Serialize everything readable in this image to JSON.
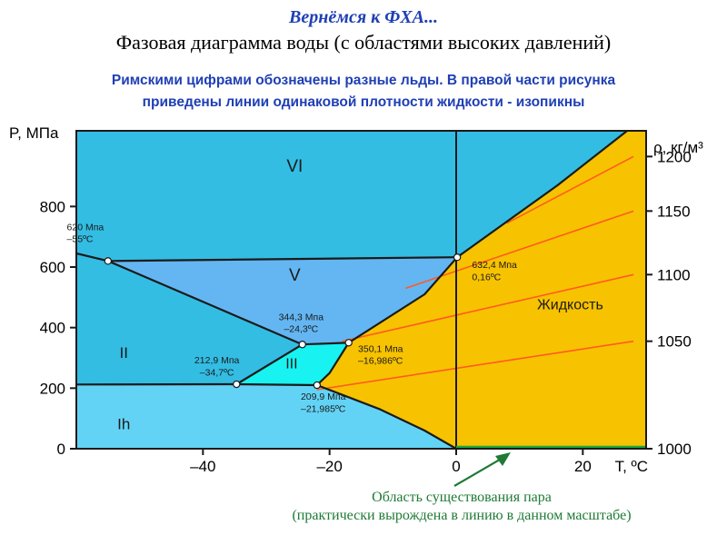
{
  "header": {
    "title_top": "Вернёмся к ФХА...",
    "title_main": "Фазовая диаграмма воды (с областями высоких давлений)",
    "subtitle_line1": "Римскими цифрами обозначены разные льды. В правой части рисунка",
    "subtitle_line2": "приведены линии одинаковой плотности жидкости - изопикны"
  },
  "chart_data": {
    "type": "phase-diagram",
    "xlabel": "T, ºC",
    "ylabel": "P, МПа",
    "y2label": "ρ, кг/м³",
    "xlim": [
      -60,
      30
    ],
    "ylim": [
      0,
      1050
    ],
    "x_ticks": [
      "–40",
      "–20",
      "0",
      "20"
    ],
    "y_ticks": [
      "0",
      "200",
      "400",
      "600",
      "800"
    ],
    "y2_ticks": [
      "1000",
      "1050",
      "1100",
      "1150",
      "1200"
    ],
    "grid": false,
    "colors": {
      "ice_vi": "#33bde3",
      "ice_v": "#63b6f2",
      "ice_ii": "#33bde3",
      "ice_iii": "#18f2f0",
      "ice_ih": "#63d3f5",
      "liquid": "#f7c200",
      "isopycnic": "#ff5b1f",
      "vapor": "#1ea63c",
      "vapor_arrow": "#1e7a35"
    },
    "regions": {
      "ice_vi": "VI",
      "ice_v": "V",
      "ice_ii": "II",
      "ice_iii": "III",
      "ice_ih": "Ih",
      "liquid": "Жидкость"
    },
    "boundaries": [
      {
        "name": "Ih-II",
        "points": [
          [
            -60,
            212
          ],
          [
            -34.7,
            212.9
          ]
        ]
      },
      {
        "name": "Ih-III",
        "points": [
          [
            -34.7,
            212.9
          ],
          [
            -21.985,
            209.9
          ]
        ]
      },
      {
        "name": "II-III",
        "points": [
          [
            -34.7,
            212.9
          ],
          [
            -24.3,
            344.3
          ]
        ]
      },
      {
        "name": "II-V",
        "points": [
          [
            -55,
            620
          ],
          [
            -24.3,
            344.3
          ]
        ]
      },
      {
        "name": "II-VI",
        "points": [
          [
            -60,
            645
          ],
          [
            -55,
            620
          ]
        ]
      },
      {
        "name": "V-VI",
        "points": [
          [
            -55,
            620
          ],
          [
            0.16,
            632.4
          ]
        ]
      },
      {
        "name": "III-V",
        "points": [
          [
            -24.3,
            344.3
          ],
          [
            -16.986,
            350.1
          ]
        ]
      },
      {
        "name": "III-L",
        "points": [
          [
            -21.985,
            209.9
          ],
          [
            -20,
            250
          ],
          [
            -16.986,
            350.1
          ]
        ]
      },
      {
        "name": "V-L",
        "points": [
          [
            -16.986,
            350.1
          ],
          [
            -5,
            510
          ],
          [
            0.16,
            632.4
          ]
        ]
      },
      {
        "name": "VI-L",
        "points": [
          [
            0.16,
            632.4
          ],
          [
            8,
            750
          ],
          [
            16,
            870
          ],
          [
            27,
            1050
          ]
        ]
      },
      {
        "name": "Ih-L",
        "points": [
          [
            -21.985,
            209.9
          ],
          [
            -12,
            130
          ],
          [
            -5,
            60
          ],
          [
            0,
            0
          ]
        ]
      }
    ],
    "triple_points": [
      {
        "t": -55,
        "p": 620,
        "label1": "620 Mпа",
        "label2": "–55ºС"
      },
      {
        "t": 0.16,
        "p": 632.4,
        "label1": "632,4 Мпа",
        "label2": "0,16ºС"
      },
      {
        "t": -24.3,
        "p": 344.3,
        "label1": "344,3 Мпа",
        "label2": "–24,3ºС"
      },
      {
        "t": -16.986,
        "p": 350.1,
        "label1": "350,1 Мпа",
        "label2": "–16,986ºС"
      },
      {
        "t": -34.7,
        "p": 212.9,
        "label1": "212,9 Мпа",
        "label2": "–34,7ºС"
      },
      {
        "t": -21.985,
        "p": 209.9,
        "label1": "209,9 Мпа",
        "label2": "–21,985ºС"
      }
    ],
    "isopycnics": [
      {
        "rho": 1050,
        "points": [
          [
            -22,
            195
          ],
          [
            28,
            355
          ]
        ]
      },
      {
        "rho": 1100,
        "points": [
          [
            -18,
            355
          ],
          [
            28,
            575
          ]
        ]
      },
      {
        "rho": 1150,
        "points": [
          [
            -8,
            530
          ],
          [
            28,
            785
          ]
        ]
      },
      {
        "rho": 1200,
        "points": [
          [
            8,
            745
          ],
          [
            28,
            965
          ]
        ]
      }
    ],
    "vapor_line": {
      "points": [
        [
          0,
          0
        ],
        [
          30,
          0
        ]
      ]
    },
    "annotation": {
      "line1": "Область существования пара",
      "line2": "(практически вырождена в линию в данном масштабе)"
    }
  }
}
